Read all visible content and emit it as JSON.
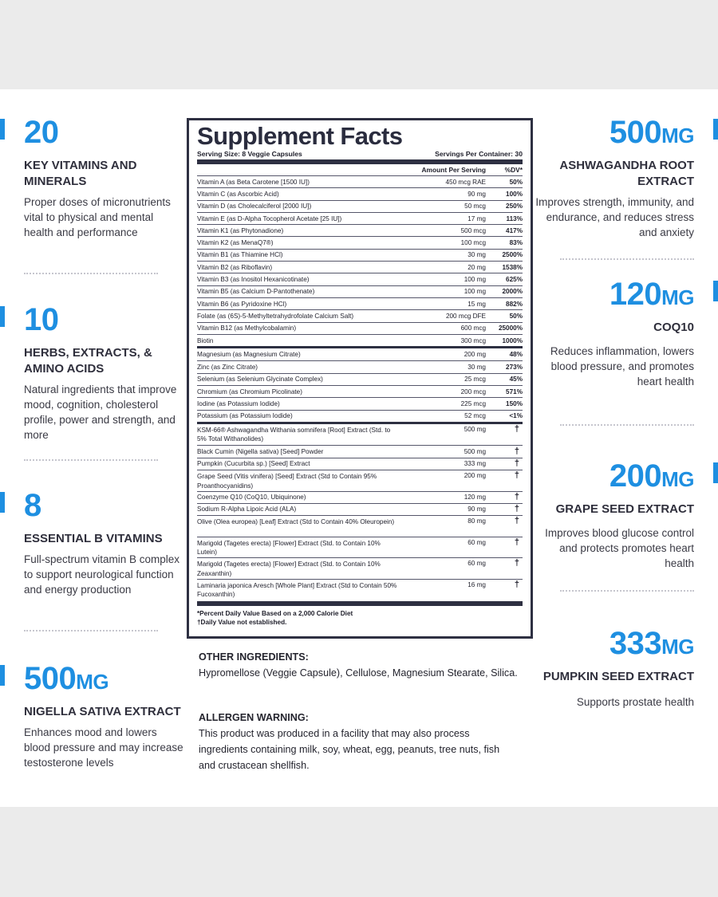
{
  "left_features": [
    {
      "number": "20",
      "unit": "",
      "title": "KEY VITAMINS AND MINERALS",
      "desc": "Proper doses of micronutrients vital to physical and mental health and performance"
    },
    {
      "number": "10",
      "unit": "",
      "title": "HERBS, EXTRACTS, & AMINO ACIDS",
      "desc": "Natural ingredients that improve mood, cognition, cholesterol profile, power and strength, and more"
    },
    {
      "number": "8",
      "unit": "",
      "title": "ESSENTIAL B VITAMINS",
      "desc": "Full-spectrum vitamin B complex to support neurological function and energy production"
    },
    {
      "number": "500",
      "unit": "MG",
      "title": "NIGELLA SATIVA EXTRACT",
      "desc": "Enhances mood and lowers blood pressure and may increase testosterone levels"
    }
  ],
  "right_features": [
    {
      "number": "500",
      "unit": "MG",
      "title": "ASHWAGANDHA ROOT EXTRACT",
      "desc": "Improves strength, immunity, and endurance, and reduces stress and anxiety"
    },
    {
      "number": "120",
      "unit": "MG",
      "title": "COQ10",
      "desc": "Reduces inflammation, lowers blood pressure, and promotes heart health"
    },
    {
      "number": "200",
      "unit": "MG",
      "title": "GRAPE SEED EXTRACT",
      "desc": "Improves blood glucose control and protects promotes heart health"
    },
    {
      "number": "333",
      "unit": "MG",
      "title": "PUMPKIN SEED EXTRACT",
      "desc": "Supports prostate health"
    }
  ],
  "facts": {
    "title": "Supplement Facts",
    "serving_size": "Serving Size: 8 Veggie Capsules",
    "servings_per_container": "Servings Per Container: 30",
    "col_amount": "Amount Per Serving",
    "col_dv": "%DV*",
    "vitamins": [
      {
        "name": "Vitamin A (as Beta Carotene [1500 IU])",
        "amount": "450 mcg RAE",
        "dv": "50%"
      },
      {
        "name": "Vitamin C (as Ascorbic Acid)",
        "amount": "90 mg",
        "dv": "100%"
      },
      {
        "name": "Vitamin D (as Cholecalciferol [2000 IU])",
        "amount": "50 mcg",
        "dv": "250%"
      },
      {
        "name": "Vitamin E (as D-Alpha Tocopherol Acetate [25 IU])",
        "amount": "17 mg",
        "dv": "113%"
      },
      {
        "name": "Vitamin K1 (as Phytonadione)",
        "amount": "500 mcg",
        "dv": "417%"
      },
      {
        "name": "Vitamin K2 (as MenaQ7®)",
        "amount": "100 mcg",
        "dv": "83%"
      },
      {
        "name": "Vitamin B1 (as Thiamine HCl)",
        "amount": "30 mg",
        "dv": "2500%"
      },
      {
        "name": "Vitamin B2 (as Riboflavin)",
        "amount": "20 mg",
        "dv": "1538%"
      },
      {
        "name": "Vitamin B3 (as Inositol Hexanicotinate)",
        "amount": "100 mg",
        "dv": "625%"
      },
      {
        "name": "Vitamin B5 (as Calcium D-Pantothenate)",
        "amount": "100 mg",
        "dv": "2000%"
      },
      {
        "name": "Vitamin B6 (as Pyridoxine HCl)",
        "amount": "15 mg",
        "dv": "882%"
      },
      {
        "name": "Folate (as (6S)-5-Methyltetrahydrofolate Calcium Salt)",
        "amount": "200 mcg DFE",
        "dv": "50%"
      },
      {
        "name": "Vitamin B12 (as Methylcobalamin)",
        "amount": "600 mcg",
        "dv": "25000%"
      },
      {
        "name": "Biotin",
        "amount": "300 mcg",
        "dv": "1000%"
      }
    ],
    "minerals": [
      {
        "name": "Magnesium (as Magnesium Citrate)",
        "amount": "200 mg",
        "dv": "48%"
      },
      {
        "name": "Zinc (as Zinc Citrate)",
        "amount": "30 mg",
        "dv": "273%"
      },
      {
        "name": "Selenium (as Selenium Glycinate Complex)",
        "amount": "25 mcg",
        "dv": "45%"
      },
      {
        "name": "Chromium (as Chromium Picolinate)",
        "amount": "200 mcg",
        "dv": "571%"
      },
      {
        "name": "Iodine (as Potassium Iodide)",
        "amount": "225 mcg",
        "dv": "150%"
      },
      {
        "name": "Potassium (as Potassium Iodide)",
        "amount": "52 mcg",
        "dv": "<1%"
      }
    ],
    "extracts": [
      {
        "name": "KSM-66® Ashwagandha Withania somnifera [Root] Extract (Std. to 5% Total Withanolides)",
        "amount": "500 mg",
        "dv": "†",
        "tall": true
      },
      {
        "name": "Black Cumin (Nigella sativa) [Seed] Powder",
        "amount": "500 mg",
        "dv": "†",
        "tall": false
      },
      {
        "name": "Pumpkin (Cucurbita sp.) [Seed] Extract",
        "amount": "333 mg",
        "dv": "†",
        "tall": false
      },
      {
        "name": "Grape Seed (Vitis vinifera) [Seed] Extract (Std to Contain 95% Proanthocyanidins)",
        "amount": "200 mg",
        "dv": "†",
        "tall": true
      },
      {
        "name": "Coenzyme Q10 (CoQ10, Ubiquinone)",
        "amount": "120 mg",
        "dv": "†",
        "tall": false
      },
      {
        "name": "Sodium R-Alpha Lipoic Acid (ALA)",
        "amount": "90 mg",
        "dv": "†",
        "tall": false
      },
      {
        "name": "Olive (Olea europea) [Leaf] Extract (Std to Contain 40% Oleuropein)",
        "amount": "80 mg",
        "dv": "†",
        "tall": true
      },
      {
        "name": "Marigold (Tagetes erecta) [Flower] Extract (Std. to Contain 10% Lutein)",
        "amount": "60 mg",
        "dv": "†",
        "tall": true
      },
      {
        "name": "Marigold (Tagetes erecta) [Flower] Extract (Std. to Contain 10% Zeaxanthin)",
        "amount": "60 mg",
        "dv": "†",
        "tall": true
      },
      {
        "name": "Laminaria japonica Aresch [Whole Plant] Extract (Std to Contain 50% Fucoxanthin)",
        "amount": "16 mg",
        "dv": "†",
        "tall": true
      }
    ],
    "footnote_1": "*Percent Daily Value Based on a 2,000 Calorie Diet",
    "footnote_2": "†Daily Value not established."
  },
  "other_ingredients": {
    "heading": "OTHER INGREDIENTS:",
    "text": "Hypromellose (Veggie Capsule), Cellulose, Magnesium Stearate, Silica."
  },
  "allergen": {
    "heading": "ALLERGEN WARNING:",
    "text": "This product was produced in a facility that may also process ingredients containing milk, soy, wheat, egg, peanuts, tree nuts, fish and crustacean shellfish."
  },
  "colors": {
    "accent": "#1e8fe1",
    "box_border": "#2e3042",
    "page_bg": "#ebebeb"
  }
}
